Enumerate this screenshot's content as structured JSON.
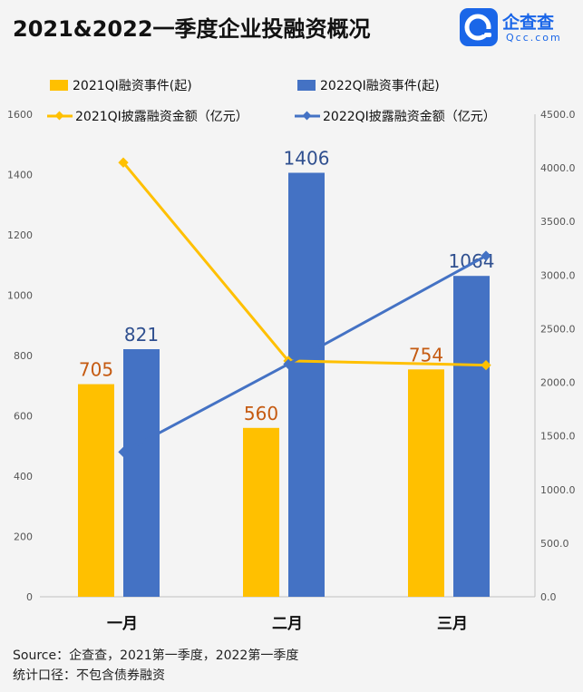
{
  "header": {
    "title": "2021&2022一季度企业投融资概况",
    "logo_brand": "企查查",
    "logo_domain": "Qcc.com",
    "logo_icon": "qcc-logo-icon"
  },
  "source": {
    "line1": "Source：企查查，2021第一季度，2022第一季度",
    "line2": "统计口径：不包含债券融资"
  },
  "colors": {
    "bar2021": "#ffc000",
    "bar2022": "#4472c4",
    "line2021": "#ffc000",
    "line2022": "#4472c4",
    "label2021": "#c55a11",
    "label2022": "#2f4f8f",
    "logo": "#1a66e8"
  },
  "chart_data": {
    "type": "bar+line",
    "categories": [
      "一月",
      "二月",
      "三月"
    ],
    "bar_series": [
      {
        "name": "2021QI融资事件(起)",
        "values": [
          705,
          560,
          754
        ],
        "data_labels": [
          "705",
          "560",
          "754"
        ]
      },
      {
        "name": "2022QI融资事件(起)",
        "values": [
          821,
          1406,
          1064
        ],
        "data_labels": [
          "821",
          "1406",
          "1064"
        ]
      }
    ],
    "line_series": [
      {
        "name": "2021QI披露融资金额（亿元）",
        "values": [
          4050,
          2200,
          2160
        ]
      },
      {
        "name": "2022QI披露融资金额（亿元）",
        "values": [
          1350,
          2170,
          3180
        ]
      }
    ],
    "y_left": {
      "min": 0,
      "max": 1600,
      "ticks": [
        "0",
        "200",
        "400",
        "600",
        "800",
        "1000",
        "1200",
        "1400",
        "1600"
      ]
    },
    "y_right": {
      "min": 0,
      "max": 4500,
      "ticks": [
        "0.0",
        "500.0",
        "1000.0",
        "1500.0",
        "2000.0",
        "2500.0",
        "3000.0",
        "3500.0",
        "4000.0",
        "4500.0"
      ]
    },
    "legend_position": "top",
    "grid": false
  }
}
